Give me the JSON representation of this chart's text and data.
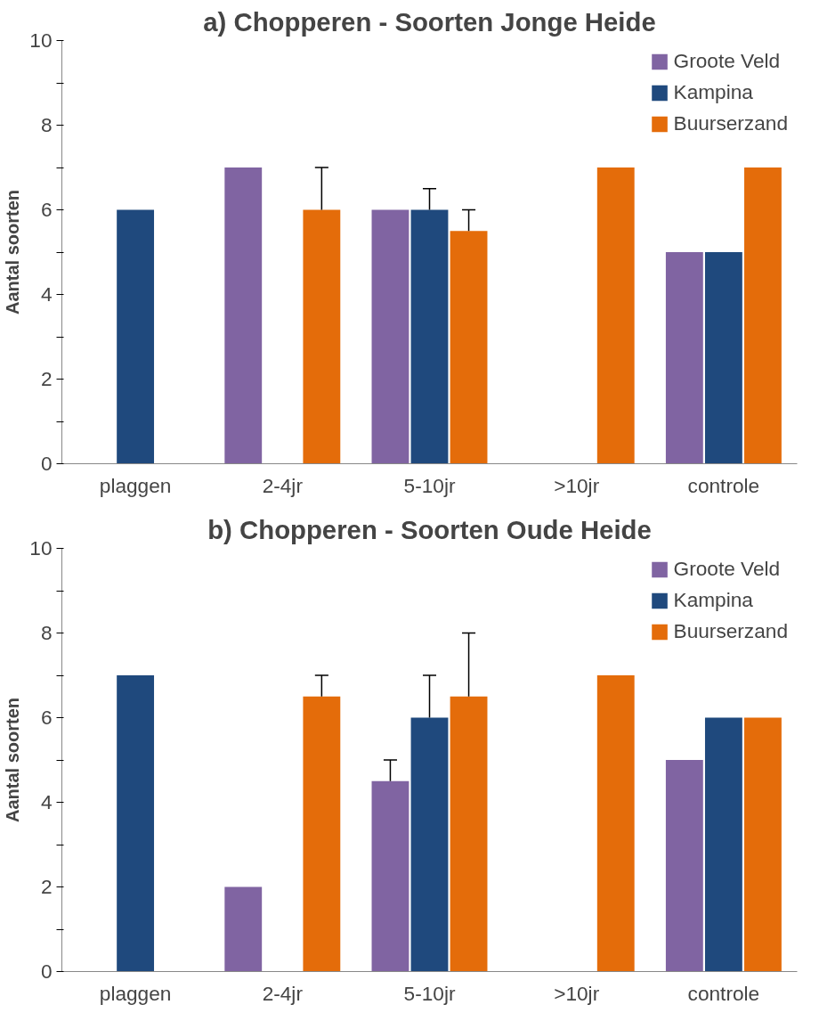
{
  "chart_data": [
    {
      "type": "bar",
      "title": "a) Chopperen - Soorten Jonge Heide",
      "ylabel": "Aantal soorten",
      "categories": [
        "plaggen",
        "2-4jr",
        "5-10jr",
        ">10jr",
        "controle"
      ],
      "series": [
        {
          "name": "Groote Veld",
          "color": "#8064a2",
          "values": [
            null,
            7,
            6,
            null,
            5
          ]
        },
        {
          "name": "Kampina",
          "color": "#1f497d",
          "values": [
            6,
            null,
            6,
            null,
            5
          ],
          "errors": [
            null,
            null,
            [
              6,
              6.5
            ],
            null,
            null
          ]
        },
        {
          "name": "Buurserzand",
          "color": "#e46c0a",
          "values": [
            null,
            6,
            5.5,
            7,
            7
          ],
          "errors": [
            null,
            [
              6,
              7
            ],
            [
              5.5,
              6
            ],
            null,
            null
          ]
        }
      ],
      "ylim": [
        0,
        10
      ],
      "yticks": [
        0,
        {
          "value": 1,
          "label": null
        },
        2,
        {
          "value": 3,
          "label": null
        },
        4,
        {
          "value": 5,
          "label": null
        },
        6,
        {
          "value": 7,
          "label": null
        },
        8,
        {
          "value": 9,
          "label": null
        },
        10
      ],
      "grid": false,
      "legend": "top right"
    },
    {
      "type": "bar",
      "title": "b) Chopperen - Soorten Oude Heide",
      "ylabel": "Aantal soorten",
      "categories": [
        "plaggen",
        "2-4jr",
        "5-10jr",
        ">10jr",
        "controle"
      ],
      "series": [
        {
          "name": "Groote Veld",
          "color": "#8064a2",
          "values": [
            null,
            2,
            4.5,
            null,
            5
          ],
          "errors": [
            null,
            null,
            [
              4.5,
              5
            ],
            null,
            null
          ]
        },
        {
          "name": "Kampina",
          "color": "#1f497d",
          "values": [
            7,
            null,
            6,
            null,
            6
          ],
          "errors": [
            null,
            null,
            [
              6,
              7
            ],
            null,
            null
          ]
        },
        {
          "name": "Buurserzand",
          "color": "#e46c0a",
          "values": [
            null,
            6.5,
            6.5,
            7,
            6
          ],
          "errors": [
            null,
            [
              6.5,
              7
            ],
            [
              6.5,
              8
            ],
            null,
            null
          ]
        }
      ],
      "ylim": [
        0,
        10
      ],
      "yticks": [
        0,
        {
          "value": 1,
          "label": null
        },
        2,
        {
          "value": 3,
          "label": null
        },
        4,
        {
          "value": 5,
          "label": null
        },
        6,
        {
          "value": 7,
          "label": null
        },
        8,
        {
          "value": 9,
          "label": null
        },
        10
      ],
      "grid": false,
      "legend": "top right"
    }
  ]
}
